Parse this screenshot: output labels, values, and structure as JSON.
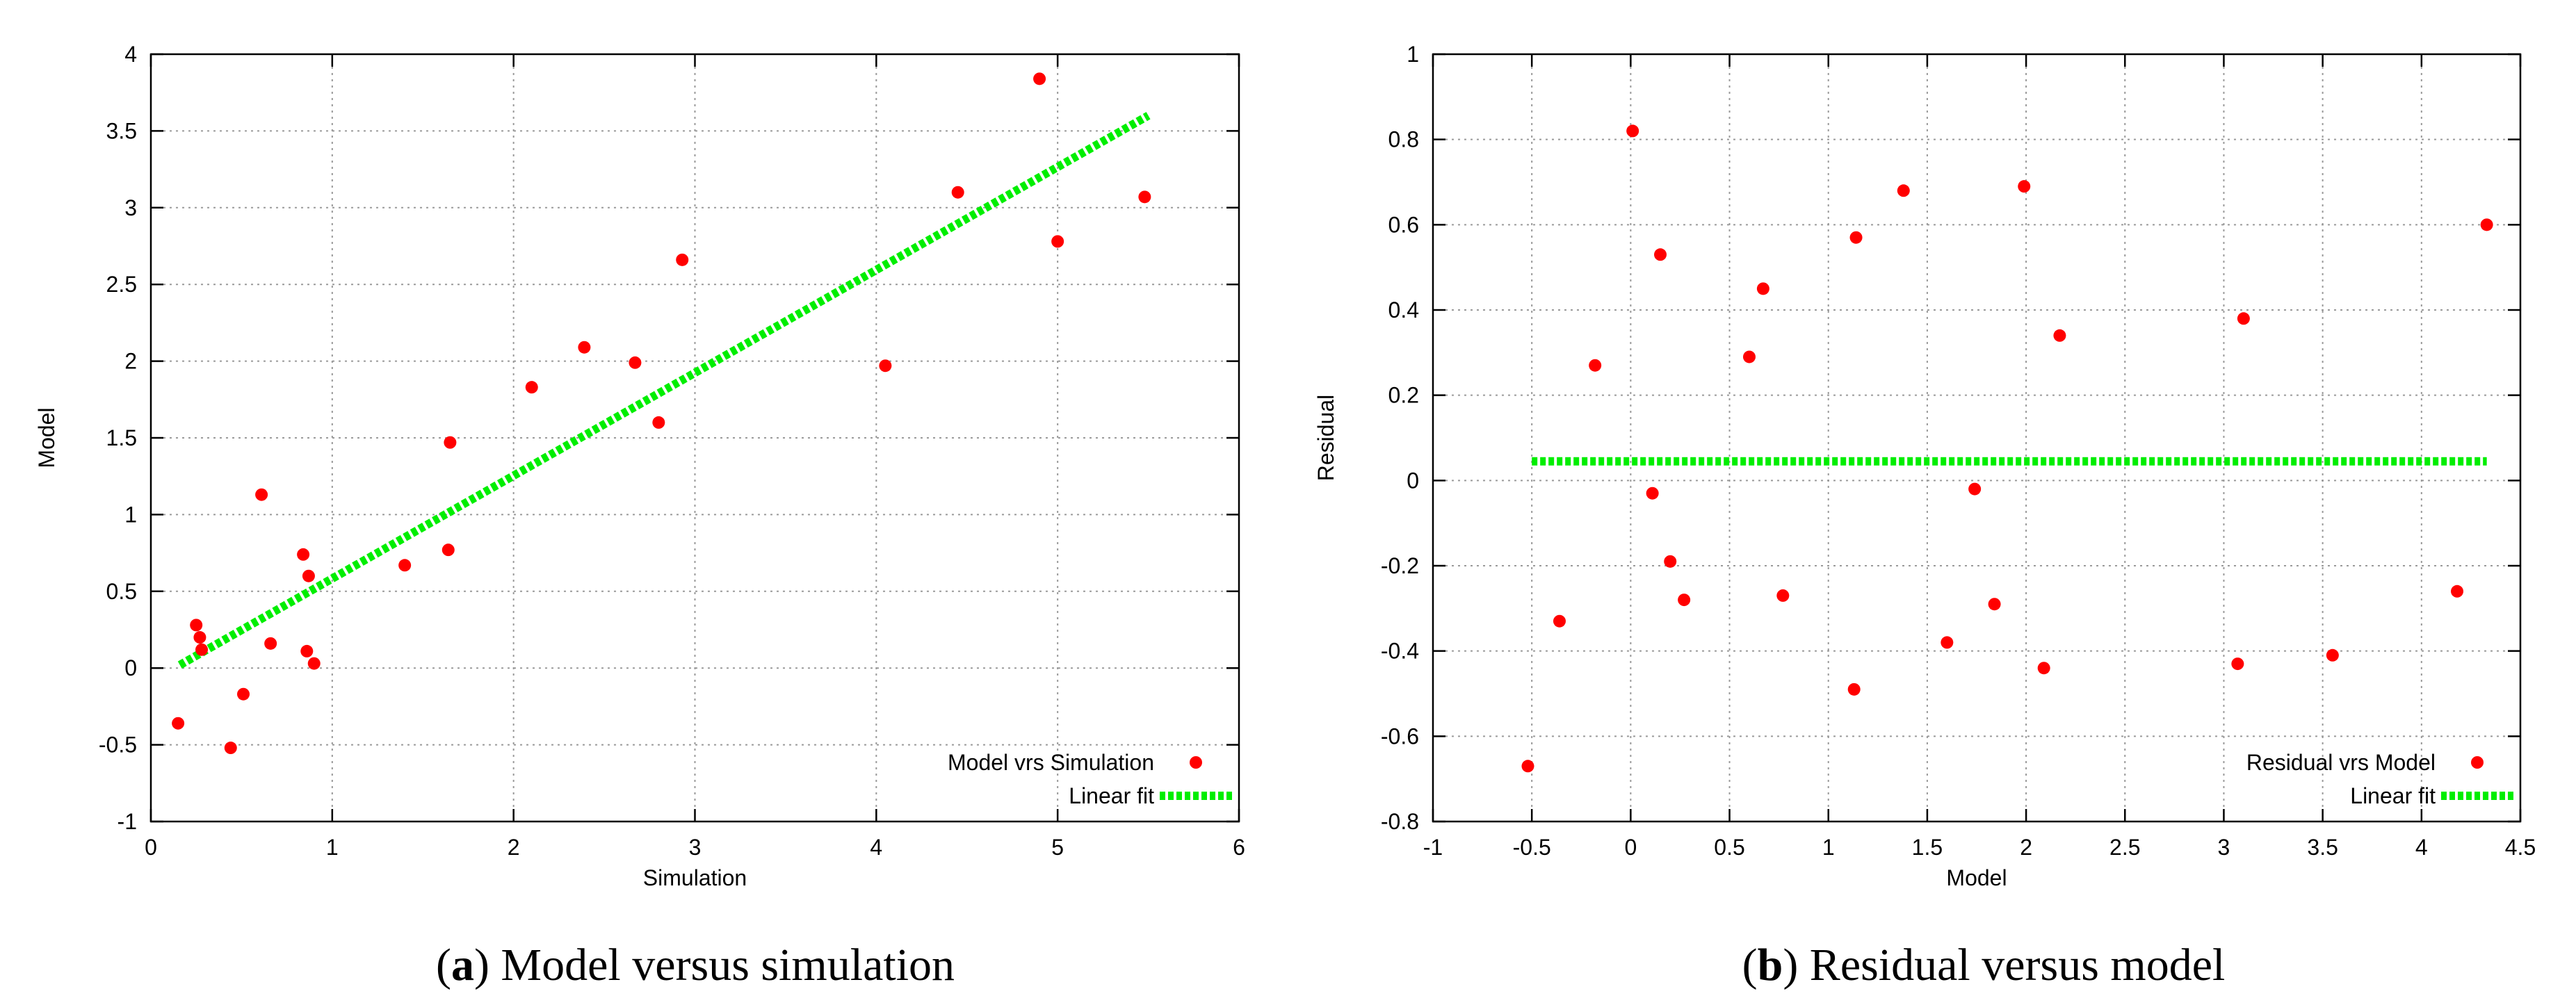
{
  "chart_data": [
    {
      "type": "scatter",
      "xlabel": "Simulation",
      "ylabel": "Model",
      "xlim": [
        0,
        6
      ],
      "ylim": [
        -1,
        4
      ],
      "xticks": [
        0,
        1,
        2,
        3,
        4,
        5,
        6
      ],
      "yticks": [
        -1,
        -0.5,
        0,
        0.5,
        1,
        1.5,
        2,
        2.5,
        3,
        3.5,
        4
      ],
      "xtick_labels": [
        "0",
        "1",
        "2",
        "3",
        "4",
        "5",
        "6"
      ],
      "ytick_labels": [
        "-1",
        "-0.5",
        "0",
        "0.5",
        "1",
        "1.5",
        "2",
        "2.5",
        "3",
        "3.5",
        "4"
      ],
      "grid": true,
      "legend_position": "bottom-right",
      "caption_letter": "a",
      "caption_text": ") Model versus simulation",
      "series": [
        {
          "name": "Model vrs Simulation",
          "kind": "points",
          "color": "#ff0000",
          "points": [
            [
              0.15,
              -0.36
            ],
            [
              0.25,
              0.28
            ],
            [
              0.27,
              0.2
            ],
            [
              0.28,
              0.12
            ],
            [
              0.44,
              -0.52
            ],
            [
              0.51,
              -0.17
            ],
            [
              0.61,
              1.13
            ],
            [
              0.66,
              0.16
            ],
            [
              0.84,
              0.74
            ],
            [
              0.86,
              0.11
            ],
            [
              0.87,
              0.6
            ],
            [
              0.9,
              0.03
            ],
            [
              1.4,
              0.67
            ],
            [
              1.64,
              0.77
            ],
            [
              1.65,
              1.47
            ],
            [
              2.1,
              1.83
            ],
            [
              2.39,
              2.09
            ],
            [
              2.67,
              1.99
            ],
            [
              2.8,
              1.6
            ],
            [
              2.93,
              2.66
            ],
            [
              4.05,
              1.97
            ],
            [
              4.45,
              3.1
            ],
            [
              4.9,
              3.84
            ],
            [
              5.0,
              2.78
            ],
            [
              5.48,
              3.07
            ]
          ]
        },
        {
          "name": "Linear fit",
          "kind": "line",
          "color": "#00ee00",
          "points": [
            [
              0.16,
              0.02
            ],
            [
              5.5,
              3.6
            ]
          ]
        }
      ]
    },
    {
      "type": "scatter",
      "xlabel": "Model",
      "ylabel": "Residual",
      "xlim": [
        -1,
        4.5
      ],
      "ylim": [
        -0.8,
        1
      ],
      "xticks": [
        -1,
        -0.5,
        0,
        0.5,
        1,
        1.5,
        2,
        2.5,
        3,
        3.5,
        4,
        4.5
      ],
      "yticks": [
        -0.8,
        -0.6,
        -0.4,
        -0.2,
        0,
        0.2,
        0.4,
        0.6,
        0.8,
        1
      ],
      "xtick_labels": [
        "-1",
        "-0.5",
        "0",
        "0.5",
        "1",
        "1.5",
        "2",
        "2.5",
        "3",
        "3.5",
        "4",
        "4.5"
      ],
      "ytick_labels": [
        "-0.8",
        "-0.6",
        "-0.4",
        "-0.2",
        "0",
        "0.2",
        "0.4",
        "0.6",
        "0.8",
        "1"
      ],
      "grid": true,
      "legend_position": "bottom-right",
      "caption_letter": "b",
      "caption_text": ") Residual versus model",
      "series": [
        {
          "name": "Residual vrs Model",
          "kind": "points",
          "color": "#ff0000",
          "points": [
            [
              -0.52,
              -0.67
            ],
            [
              -0.36,
              -0.33
            ],
            [
              -0.18,
              0.27
            ],
            [
              0.01,
              0.82
            ],
            [
              0.11,
              -0.03
            ],
            [
              0.15,
              0.53
            ],
            [
              0.2,
              -0.19
            ],
            [
              0.27,
              -0.28
            ],
            [
              0.6,
              0.29
            ],
            [
              0.67,
              0.45
            ],
            [
              0.77,
              -0.27
            ],
            [
              1.13,
              -0.49
            ],
            [
              1.14,
              0.57
            ],
            [
              1.38,
              0.68
            ],
            [
              1.6,
              -0.38
            ],
            [
              1.74,
              -0.02
            ],
            [
              1.84,
              -0.29
            ],
            [
              1.99,
              0.69
            ],
            [
              2.09,
              -0.44
            ],
            [
              2.17,
              0.34
            ],
            [
              3.07,
              -0.43
            ],
            [
              3.1,
              0.38
            ],
            [
              3.55,
              -0.41
            ],
            [
              4.18,
              -0.26
            ],
            [
              4.33,
              0.6
            ]
          ]
        },
        {
          "name": "Linear fit",
          "kind": "line",
          "color": "#00ee00",
          "points": [
            [
              -0.5,
              0.045
            ],
            [
              4.33,
              0.045
            ]
          ]
        }
      ]
    }
  ]
}
